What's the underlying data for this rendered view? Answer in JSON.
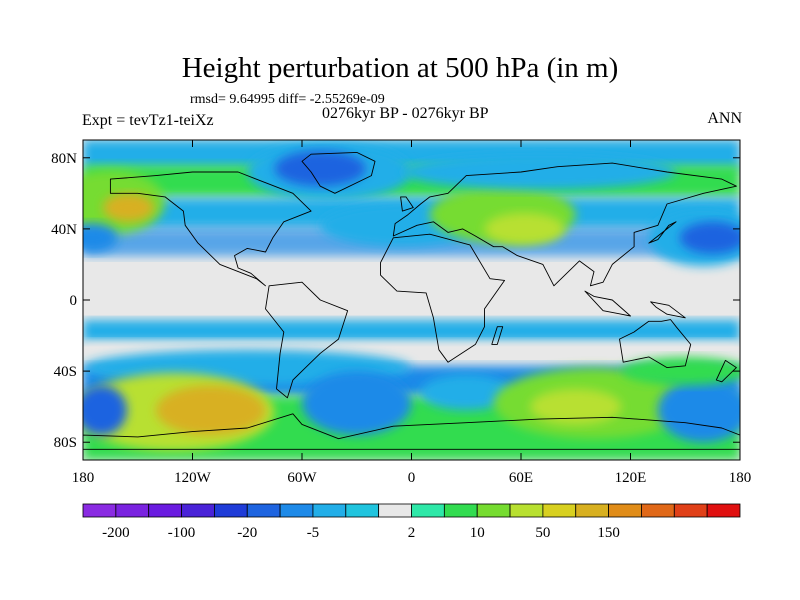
{
  "title": "Height perturbation at 500 hPa (in m)",
  "stats": "rmsd= 9.64995 diff= -2.55269e-09",
  "expt_label": "Expt = tevTz1-teiXz",
  "period_label": "0276kyr BP - 0276kyr BP",
  "season_label": "ANN",
  "map": {
    "projection": "cylindrical-equidistant",
    "lon_range": [
      -180,
      180
    ],
    "lat_range": [
      -90,
      90
    ],
    "lon_ticks": [
      {
        "value": -180,
        "label": "180"
      },
      {
        "value": -120,
        "label": "120W"
      },
      {
        "value": -60,
        "label": "60W"
      },
      {
        "value": 0,
        "label": "0"
      },
      {
        "value": 60,
        "label": "60E"
      },
      {
        "value": 120,
        "label": "120E"
      },
      {
        "value": 180,
        "label": "180"
      }
    ],
    "lat_ticks": [
      {
        "value": 80,
        "label": "80N"
      },
      {
        "value": 40,
        "label": "40N"
      },
      {
        "value": 0,
        "label": "0"
      },
      {
        "value": -40,
        "label": "40S"
      },
      {
        "value": -80,
        "label": "80S"
      }
    ]
  },
  "colorbar": {
    "colors": [
      "#8a2be2",
      "#7a23e0",
      "#6a1be0",
      "#4a23d8",
      "#1f3cd8",
      "#1e64e0",
      "#1e8ae8",
      "#22aee8",
      "#20c4de",
      "#e8e8e8",
      "#2ee8a8",
      "#32dc50",
      "#76dc30",
      "#b8e030",
      "#d8d020",
      "#d8b020",
      "#e08c18",
      "#e06818",
      "#e04018",
      "#e01010"
    ],
    "tick_labels": [
      {
        "boundary": 1,
        "label": "-200"
      },
      {
        "boundary": 3,
        "label": "-100"
      },
      {
        "boundary": 5,
        "label": "-20"
      },
      {
        "boundary": 7,
        "label": "-5"
      },
      {
        "boundary": 10,
        "label": "2"
      },
      {
        "boundary": 12,
        "label": "10"
      },
      {
        "boundary": 14,
        "label": "50"
      },
      {
        "boundary": 16,
        "label": "150"
      }
    ]
  },
  "fields": [
    {
      "lon": -165,
      "lat": 55,
      "rx": 30,
      "ry": 18,
      "color": "#76dc30"
    },
    {
      "lon": -155,
      "lat": 52,
      "rx": 14,
      "ry": 8,
      "color": "#d8b020"
    },
    {
      "lon": -175,
      "lat": 35,
      "rx": 14,
      "ry": 8,
      "color": "#1e8ae8"
    },
    {
      "lon": -45,
      "lat": 72,
      "rx": 45,
      "ry": 16,
      "color": "#22aee8"
    },
    {
      "lon": -50,
      "lat": 74,
      "rx": 25,
      "ry": 10,
      "color": "#1e64e0"
    },
    {
      "lon": -5,
      "lat": 42,
      "rx": 45,
      "ry": 12,
      "color": "#22aee8"
    },
    {
      "lon": 50,
      "lat": 48,
      "rx": 40,
      "ry": 16,
      "color": "#76dc30"
    },
    {
      "lon": 62,
      "lat": 40,
      "rx": 22,
      "ry": 9,
      "color": "#b8e030"
    },
    {
      "lon": 70,
      "lat": 72,
      "rx": 75,
      "ry": 10,
      "color": "#22aee8"
    },
    {
      "lon": 160,
      "lat": 35,
      "rx": 30,
      "ry": 16,
      "color": "#22aee8"
    },
    {
      "lon": 165,
      "lat": 35,
      "rx": 18,
      "ry": 9,
      "color": "#1e64e0"
    },
    {
      "lon": -90,
      "lat": -38,
      "rx": 90,
      "ry": 10,
      "color": "#22aee8"
    },
    {
      "lon": -130,
      "lat": -63,
      "rx": 55,
      "ry": 22,
      "color": "#b8e030"
    },
    {
      "lon": -110,
      "lat": -62,
      "rx": 30,
      "ry": 14,
      "color": "#d8b020"
    },
    {
      "lon": -170,
      "lat": -62,
      "rx": 14,
      "ry": 14,
      "color": "#1e64e0"
    },
    {
      "lon": -30,
      "lat": -58,
      "rx": 30,
      "ry": 18,
      "color": "#1e8ae8"
    },
    {
      "lon": 30,
      "lat": -52,
      "rx": 25,
      "ry": 10,
      "color": "#22aee8"
    },
    {
      "lon": 100,
      "lat": -58,
      "rx": 55,
      "ry": 20,
      "color": "#76dc30"
    },
    {
      "lon": 90,
      "lat": -60,
      "rx": 25,
      "ry": 10,
      "color": "#b8e030"
    },
    {
      "lon": 160,
      "lat": -62,
      "rx": 25,
      "ry": 18,
      "color": "#1e8ae8"
    },
    {
      "lon": 150,
      "lat": -40,
      "rx": 35,
      "ry": 8,
      "color": "#32dc50"
    }
  ],
  "continents": [
    {
      "name": "north-america",
      "points": [
        [
          -165,
          68
        ],
        [
          -140,
          70
        ],
        [
          -120,
          72
        ],
        [
          -95,
          72
        ],
        [
          -80,
          66
        ],
        [
          -65,
          60
        ],
        [
          -55,
          50
        ],
        [
          -70,
          44
        ],
        [
          -76,
          35
        ],
        [
          -80,
          27
        ],
        [
          -90,
          29
        ],
        [
          -97,
          25
        ],
        [
          -95,
          18
        ],
        [
          -88,
          15
        ],
        [
          -80,
          8
        ],
        [
          -85,
          12
        ],
        [
          -105,
          20
        ],
        [
          -117,
          32
        ],
        [
          -124,
          42
        ],
        [
          -125,
          50
        ],
        [
          -135,
          58
        ],
        [
          -150,
          60
        ],
        [
          -165,
          60
        ]
      ]
    },
    {
      "name": "greenland",
      "points": [
        [
          -55,
          82
        ],
        [
          -30,
          83
        ],
        [
          -20,
          78
        ],
        [
          -22,
          70
        ],
        [
          -42,
          60
        ],
        [
          -50,
          64
        ],
        [
          -55,
          72
        ],
        [
          -60,
          78
        ]
      ]
    },
    {
      "name": "south-america",
      "points": [
        [
          -78,
          8
        ],
        [
          -60,
          10
        ],
        [
          -50,
          0
        ],
        [
          -35,
          -6
        ],
        [
          -40,
          -22
        ],
        [
          -50,
          -30
        ],
        [
          -58,
          -38
        ],
        [
          -65,
          -45
        ],
        [
          -68,
          -55
        ],
        [
          -74,
          -50
        ],
        [
          -72,
          -30
        ],
        [
          -70,
          -18
        ],
        [
          -80,
          -5
        ]
      ]
    },
    {
      "name": "eurasia",
      "points": [
        [
          -10,
          36
        ],
        [
          -9,
          43
        ],
        [
          -2,
          48
        ],
        [
          5,
          54
        ],
        [
          10,
          58
        ],
        [
          20,
          60
        ],
        [
          30,
          70
        ],
        [
          60,
          72
        ],
        [
          80,
          75
        ],
        [
          110,
          77
        ],
        [
          140,
          72
        ],
        [
          170,
          68
        ],
        [
          178,
          64
        ],
        [
          160,
          60
        ],
        [
          140,
          54
        ],
        [
          135,
          42
        ],
        [
          122,
          38
        ],
        [
          122,
          30
        ],
        [
          110,
          20
        ],
        [
          105,
          10
        ],
        [
          98,
          8
        ],
        [
          100,
          16
        ],
        [
          92,
          22
        ],
        [
          78,
          8
        ],
        [
          72,
          20
        ],
        [
          58,
          25
        ],
        [
          50,
          30
        ],
        [
          45,
          30
        ],
        [
          35,
          36
        ],
        [
          28,
          40
        ],
        [
          20,
          38
        ],
        [
          12,
          44
        ],
        [
          3,
          42
        ]
      ]
    },
    {
      "name": "africa",
      "points": [
        [
          -17,
          21
        ],
        [
          -10,
          35
        ],
        [
          10,
          37
        ],
        [
          32,
          31
        ],
        [
          43,
          12
        ],
        [
          51,
          11
        ],
        [
          40,
          -5
        ],
        [
          40,
          -15
        ],
        [
          35,
          -25
        ],
        [
          20,
          -35
        ],
        [
          15,
          -28
        ],
        [
          12,
          -10
        ],
        [
          8,
          4
        ],
        [
          -8,
          5
        ],
        [
          -17,
          14
        ]
      ]
    },
    {
      "name": "australia",
      "points": [
        [
          114,
          -22
        ],
        [
          122,
          -18
        ],
        [
          130,
          -12
        ],
        [
          137,
          -12
        ],
        [
          142,
          -11
        ],
        [
          145,
          -15
        ],
        [
          153,
          -25
        ],
        [
          150,
          -37
        ],
        [
          140,
          -38
        ],
        [
          130,
          -32
        ],
        [
          116,
          -35
        ]
      ]
    },
    {
      "name": "antarctica",
      "points": [
        [
          -180,
          -84
        ],
        [
          -180,
          -76
        ],
        [
          -150,
          -77
        ],
        [
          -120,
          -74
        ],
        [
          -90,
          -72
        ],
        [
          -65,
          -64
        ],
        [
          -60,
          -70
        ],
        [
          -40,
          -78
        ],
        [
          -10,
          -71
        ],
        [
          30,
          -69
        ],
        [
          70,
          -67
        ],
        [
          110,
          -66
        ],
        [
          150,
          -69
        ],
        [
          170,
          -72
        ],
        [
          180,
          -76
        ],
        [
          180,
          -84
        ]
      ]
    },
    {
      "name": "madagascar",
      "points": [
        [
          44,
          -25
        ],
        [
          47,
          -15
        ],
        [
          50,
          -15
        ],
        [
          47,
          -25
        ]
      ]
    },
    {
      "name": "uk",
      "points": [
        [
          -5,
          50
        ],
        [
          -6,
          58
        ],
        [
          -3,
          58
        ],
        [
          1,
          52
        ]
      ]
    },
    {
      "name": "japan",
      "points": [
        [
          130,
          32
        ],
        [
          140,
          40
        ],
        [
          145,
          44
        ],
        [
          141,
          42
        ],
        [
          135,
          34
        ]
      ]
    },
    {
      "name": "new-zealand",
      "points": [
        [
          172,
          -34
        ],
        [
          178,
          -38
        ],
        [
          170,
          -46
        ],
        [
          167,
          -45
        ]
      ]
    },
    {
      "name": "indonesia",
      "points": [
        [
          95,
          5
        ],
        [
          105,
          -6
        ],
        [
          115,
          -8
        ],
        [
          120,
          -9
        ],
        [
          110,
          0
        ],
        [
          100,
          2
        ]
      ]
    },
    {
      "name": "new-guinea",
      "points": [
        [
          131,
          -1
        ],
        [
          141,
          -3
        ],
        [
          150,
          -10
        ],
        [
          140,
          -8
        ],
        [
          134,
          -4
        ]
      ]
    }
  ]
}
